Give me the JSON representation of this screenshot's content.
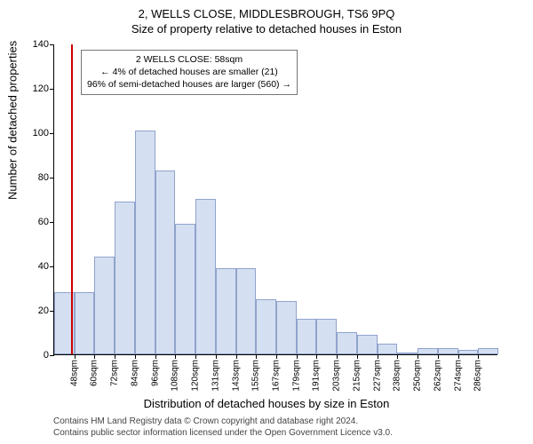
{
  "title": {
    "line1": "2, WELLS CLOSE, MIDDLESBROUGH, TS6 9PQ",
    "line2": "Size of property relative to detached houses in Eston"
  },
  "chart": {
    "type": "histogram",
    "bar_fill": "#d5dff2",
    "bar_border": "#8fa3cc",
    "background": "#ffffff",
    "axis_color": "#000000",
    "ylim": [
      0,
      140
    ],
    "ytick_step": 20,
    "y_axis_title": "Number of detached properties",
    "x_axis_title": "Distribution of detached houses by size in Eston",
    "x_labels": [
      "48sqm",
      "60sqm",
      "72sqm",
      "84sqm",
      "96sqm",
      "108sqm",
      "120sqm",
      "131sqm",
      "143sqm",
      "155sqm",
      "167sqm",
      "179sqm",
      "191sqm",
      "203sqm",
      "215sqm",
      "227sqm",
      "238sqm",
      "250sqm",
      "262sqm",
      "274sqm",
      "286sqm"
    ],
    "values": [
      28,
      28,
      44,
      69,
      101,
      83,
      59,
      70,
      39,
      39,
      25,
      24,
      16,
      16,
      10,
      9,
      5,
      1,
      3,
      3,
      2,
      3
    ],
    "marker": {
      "color": "#cc0000",
      "position_index": 1,
      "box_lines": [
        "2 WELLS CLOSE: 58sqm",
        "← 4% of detached houses are smaller (21)",
        "96% of semi-detached houses are larger (560) →"
      ]
    }
  },
  "attribution": {
    "line1": "Contains HM Land Registry data © Crown copyright and database right 2024.",
    "line2": "Contains public sector information licensed under the Open Government Licence v3.0."
  }
}
